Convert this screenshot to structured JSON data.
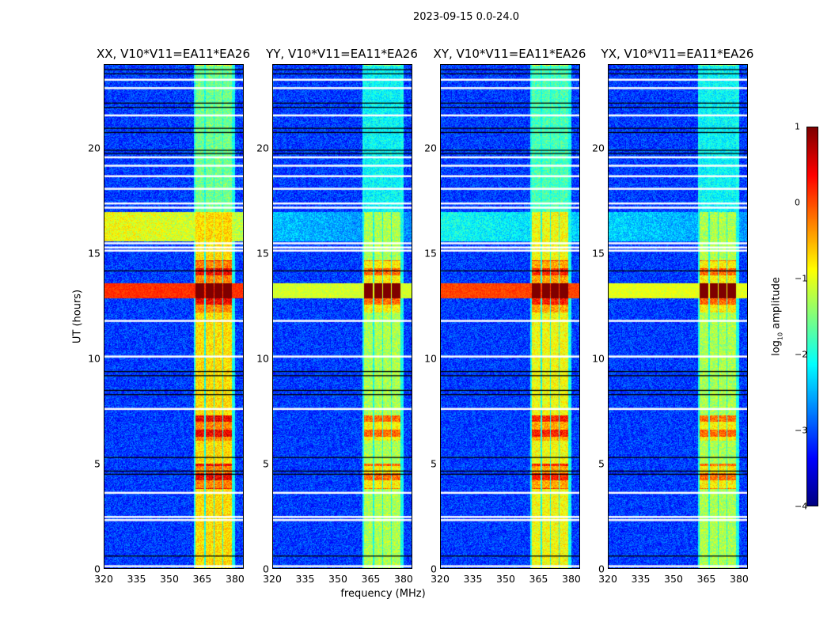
{
  "chart_data": {
    "type": "heatmap",
    "title": "2023-09-15 0.0-24.0",
    "xlabel": "frequency (MHz)",
    "ylabel": "UT (hours)",
    "xlim": [
      320,
      384
    ],
    "ylim": [
      0,
      24
    ],
    "xticks": [
      320,
      335,
      350,
      365,
      380
    ],
    "yticks": [
      0,
      5,
      10,
      15,
      20
    ],
    "colorbar": {
      "label": "log10 amplitude",
      "label_main": "log",
      "label_sub": "10",
      "label_rest": " amplitude",
      "range": [
        -4,
        1
      ],
      "ticks": [
        1,
        0,
        -1,
        -2,
        -3,
        -4
      ],
      "colormap": "jet"
    },
    "background_level": -3.3,
    "rfi_columns_mhz": [
      [
        362,
        366
      ],
      [
        366.5,
        370.3
      ],
      [
        370.8,
        374.3
      ],
      [
        374.8,
        378.8
      ]
    ],
    "flagged_white_hours": [
      0.1,
      2.3,
      2.45,
      3.6,
      7.6,
      10.1,
      11.8,
      15.15,
      15.3,
      15.5,
      17.2,
      17.4,
      18.1,
      18.7,
      19.2,
      19.6,
      21.6,
      22.9,
      23.3
    ],
    "flagged_black_hours": [
      0.6,
      4.5,
      4.65,
      5.3,
      8.3,
      8.5,
      9.2,
      9.4,
      14.2,
      19.8,
      19.95,
      20.8,
      21.0,
      22.0,
      22.2,
      23.6,
      23.8
    ],
    "panels": [
      {
        "title": "XX, V10*V11=EA11*EA26",
        "band_level": -0.8,
        "event_level": 0.1,
        "burst_15_17": -1.0
      },
      {
        "title": "YY, V10*V11=EA11*EA26",
        "band_level": -1.4,
        "event_level": -1.2,
        "burst_15_17": -2.6
      },
      {
        "title": "XY, V10*V11=EA11*EA26",
        "band_level": -1.0,
        "event_level": 0.0,
        "burst_15_17": -2.2
      },
      {
        "title": "YX, V10*V11=EA11*EA26",
        "band_level": -1.4,
        "event_level": -1.1,
        "burst_15_17": -2.5
      }
    ]
  }
}
